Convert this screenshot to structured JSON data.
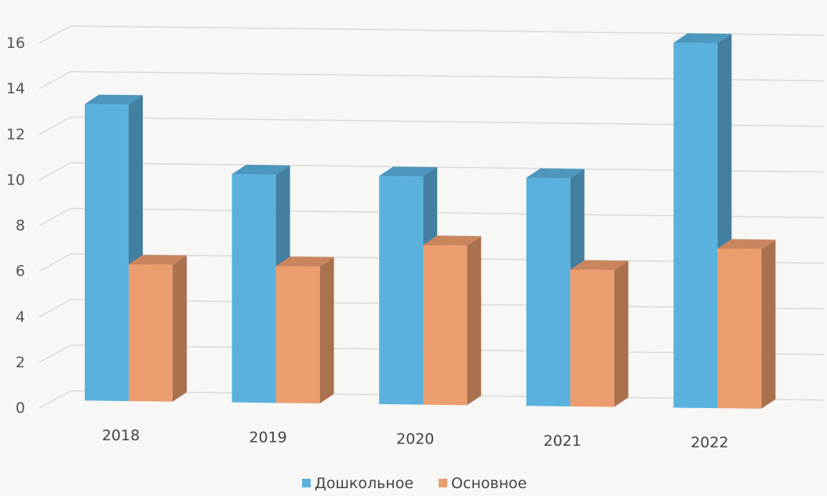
{
  "chart_data": {
    "type": "bar",
    "subtype": "3d-clustered-column",
    "categories": [
      "2018",
      "2019",
      "2020",
      "2021",
      "2022"
    ],
    "series": [
      {
        "name": "Дошкольное",
        "values": [
          13,
          10,
          10,
          10,
          16
        ],
        "color": "#5bb1de"
      },
      {
        "name": "Основное",
        "values": [
          6,
          6,
          7,
          6,
          7
        ],
        "color": "#ec9d6e"
      }
    ],
    "yticks": [
      "0",
      "2",
      "4",
      "6",
      "8",
      "10",
      "12",
      "14",
      "16"
    ],
    "ylim": [
      0,
      16
    ],
    "grid": true,
    "legend": "bottom",
    "title": "",
    "xlabel": "",
    "ylabel": ""
  }
}
